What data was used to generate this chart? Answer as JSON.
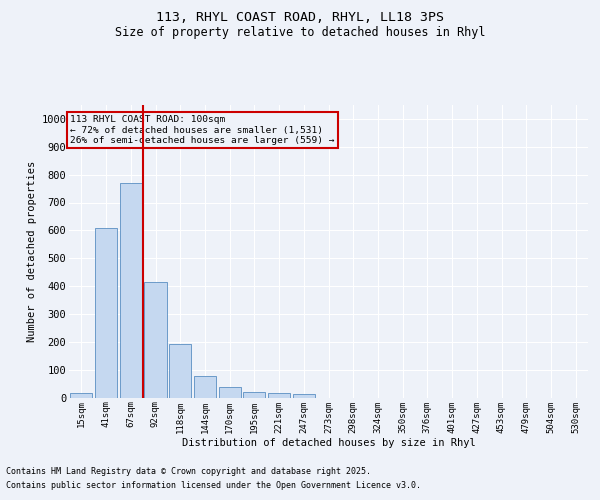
{
  "title_line1": "113, RHYL COAST ROAD, RHYL, LL18 3PS",
  "title_line2": "Size of property relative to detached houses in Rhyl",
  "xlabel": "Distribution of detached houses by size in Rhyl",
  "ylabel": "Number of detached properties",
  "footer_line1": "Contains HM Land Registry data © Crown copyright and database right 2025.",
  "footer_line2": "Contains public sector information licensed under the Open Government Licence v3.0.",
  "annotation_line1": "113 RHYL COAST ROAD: 100sqm",
  "annotation_line2": "← 72% of detached houses are smaller (1,531)",
  "annotation_line3": "26% of semi-detached houses are larger (559) →",
  "bar_labels": [
    "15sqm",
    "41sqm",
    "67sqm",
    "92sqm",
    "118sqm",
    "144sqm",
    "170sqm",
    "195sqm",
    "221sqm",
    "247sqm",
    "273sqm",
    "298sqm",
    "324sqm",
    "350sqm",
    "376sqm",
    "401sqm",
    "427sqm",
    "453sqm",
    "479sqm",
    "504sqm",
    "530sqm"
  ],
  "bar_values": [
    15,
    607,
    770,
    413,
    192,
    78,
    38,
    18,
    15,
    13,
    0,
    0,
    0,
    0,
    0,
    0,
    0,
    0,
    0,
    0,
    0
  ],
  "bar_color": "#c5d8f0",
  "bar_edge_color": "#5a8fc2",
  "vline_color": "#cc0000",
  "ylim": [
    0,
    1050
  ],
  "yticks": [
    0,
    100,
    200,
    300,
    400,
    500,
    600,
    700,
    800,
    900,
    1000
  ],
  "bg_color": "#eef2f9",
  "grid_color": "#ffffff",
  "annotation_box_color": "#cc0000"
}
